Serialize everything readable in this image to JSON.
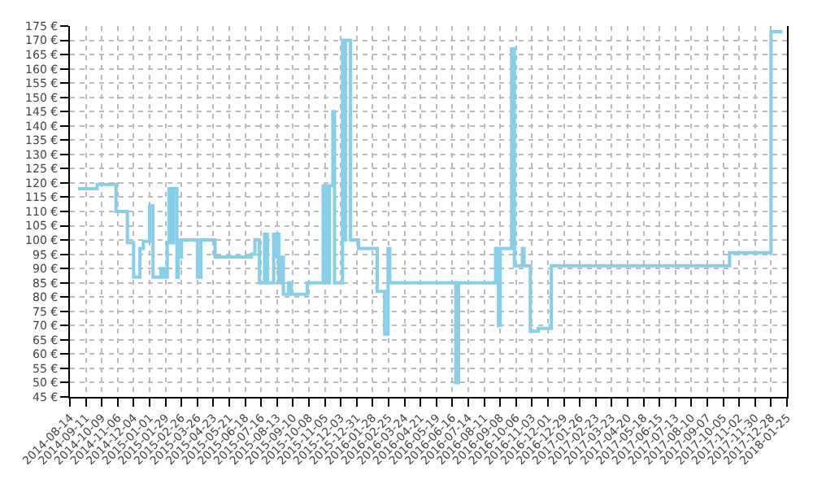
{
  "chart_data": {
    "type": "step",
    "color": "#87ceeb",
    "line_style": "solid",
    "marker": "none",
    "grid": true,
    "legend": false,
    "x": [
      "2014-08-28",
      "2014-10-01",
      "2014-11-03",
      "2014-11-23",
      "2014-12-04",
      "2014-12-15",
      "2014-12-21",
      "2015-01-01",
      "2015-01-07",
      "2015-01-21",
      "2015-01-26",
      "2015-02-01",
      "2015-02-04",
      "2015-02-09",
      "2015-02-12",
      "2015-02-18",
      "2015-02-20",
      "2015-02-23",
      "2015-02-26",
      "2015-03-26",
      "2015-04-01",
      "2015-04-26",
      "2015-06-29",
      "2015-07-05",
      "2015-07-13",
      "2015-07-22",
      "2015-07-27",
      "2015-08-07",
      "2015-08-10",
      "2015-08-13",
      "2015-08-16",
      "2015-08-19",
      "2015-08-24",
      "2015-09-02",
      "2015-09-07",
      "2015-10-05",
      "2015-11-02",
      "2015-11-08",
      "2015-11-13",
      "2015-11-19",
      "2015-11-22",
      "2015-12-06",
      "2015-12-09",
      "2015-12-11",
      "2015-12-20",
      "2016-01-03",
      "2016-02-05",
      "2016-02-18",
      "2016-02-24",
      "2016-02-27",
      "2016-06-22",
      "2016-06-27",
      "2016-08-31",
      "2016-09-05",
      "2016-09-08",
      "2016-09-28",
      "2016-10-03",
      "2016-10-17",
      "2016-10-20",
      "2016-10-31",
      "2016-11-14",
      "2016-12-07",
      "2017-10-16",
      "2017-12-28",
      "2018-01-17"
    ],
    "values": [
      118,
      119.5,
      110,
      99,
      87,
      97,
      99.5,
      112,
      87,
      90,
      87,
      99,
      118,
      99,
      118,
      87,
      100,
      94,
      100,
      87,
      100,
      94,
      95,
      100,
      85,
      102,
      85,
      102,
      94,
      102,
      85,
      94,
      81,
      85,
      81,
      85,
      119,
      85,
      119,
      145,
      85,
      170,
      100,
      170,
      100,
      97,
      82,
      67,
      97,
      85,
      50,
      85,
      97,
      70,
      97,
      167,
      91,
      97,
      91,
      68,
      69,
      91,
      95.5,
      173,
      173
    ],
    "xlim": [
      "2014-08-14",
      "2018-01-25"
    ],
    "xticks": [
      {
        "value": "2014-08-14",
        "label": "2014-08-14"
      },
      {
        "value": "2014-09-11",
        "label": "2014-09-11"
      },
      {
        "value": "2014-10-09",
        "label": "2014-10-09"
      },
      {
        "value": "2014-11-06",
        "label": "2014-11-06"
      },
      {
        "value": "2014-12-04",
        "label": "2014-12-04"
      },
      {
        "value": "2015-01-01",
        "label": "2015-01-01"
      },
      {
        "value": "2015-01-29",
        "label": "2015-01-29"
      },
      {
        "value": "2015-02-26",
        "label": "2015-02-26"
      },
      {
        "value": "2015-03-26",
        "label": "2015-03-26"
      },
      {
        "value": "2015-04-23",
        "label": "2015-04-23"
      },
      {
        "value": "2015-05-21",
        "label": "2015-05-21"
      },
      {
        "value": "2015-06-18",
        "label": "2015-06-18"
      },
      {
        "value": "2015-07-16",
        "label": "2015-07-16"
      },
      {
        "value": "2015-08-13",
        "label": "2015-08-13"
      },
      {
        "value": "2015-09-10",
        "label": "2015-09-10"
      },
      {
        "value": "2015-10-08",
        "label": "2015-10-08"
      },
      {
        "value": "2015-11-05",
        "label": "2015-11-05"
      },
      {
        "value": "2015-12-03",
        "label": "2015-12-03"
      },
      {
        "value": "2015-12-31",
        "label": "2015-12-31"
      },
      {
        "value": "2016-01-28",
        "label": "2016-01-28"
      },
      {
        "value": "2016-02-25",
        "label": "2016-02-25"
      },
      {
        "value": "2016-03-24",
        "label": "2016-03-24"
      },
      {
        "value": "2016-04-21",
        "label": "2016-04-21"
      },
      {
        "value": "2016-05-19",
        "label": "2016-05-19"
      },
      {
        "value": "2016-06-16",
        "label": "2016-06-16"
      },
      {
        "value": "2016-07-14",
        "label": "2016-07-14"
      },
      {
        "value": "2016-08-11",
        "label": "2016-08-11"
      },
      {
        "value": "2016-09-08",
        "label": "2016-09-08"
      },
      {
        "value": "2016-10-06",
        "label": "2016-10-06"
      },
      {
        "value": "2016-11-03",
        "label": "2016-11-03"
      },
      {
        "value": "2016-12-01",
        "label": "2016-12-01"
      },
      {
        "value": "2016-12-29",
        "label": "2016-12-29"
      },
      {
        "value": "2017-01-26",
        "label": "2017-01-26"
      },
      {
        "value": "2017-02-23",
        "label": "2017-02-23"
      },
      {
        "value": "2017-03-23",
        "label": "2017-03-23"
      },
      {
        "value": "2017-04-20",
        "label": "2017-04-20"
      },
      {
        "value": "2017-05-18",
        "label": "2017-05-18"
      },
      {
        "value": "2017-06-15",
        "label": "2017-06-15"
      },
      {
        "value": "2017-07-13",
        "label": "2017-07-13"
      },
      {
        "value": "2017-08-10",
        "label": "2017-08-10"
      },
      {
        "value": "2017-09-07",
        "label": "2017-09-07"
      },
      {
        "value": "2017-10-05",
        "label": "2017-10-05"
      },
      {
        "value": "2017-11-02",
        "label": "2017-11-02"
      },
      {
        "value": "2017-11-30",
        "label": "2017-11-30"
      },
      {
        "value": "2017-12-28",
        "label": "2017-12-28"
      },
      {
        "value": "2018-01-25",
        "label": "2018-01-25"
      }
    ],
    "ylim": [
      45,
      175
    ],
    "yticks": [
      {
        "value": 45,
        "label": "45 €"
      },
      {
        "value": 50,
        "label": "50 €"
      },
      {
        "value": 55,
        "label": "55 €"
      },
      {
        "value": 60,
        "label": "60 €"
      },
      {
        "value": 65,
        "label": "65 €"
      },
      {
        "value": 70,
        "label": "70 €"
      },
      {
        "value": 75,
        "label": "75 €"
      },
      {
        "value": 80,
        "label": "80 €"
      },
      {
        "value": 85,
        "label": "85 €"
      },
      {
        "value": 90,
        "label": "90 €"
      },
      {
        "value": 95,
        "label": "95 €"
      },
      {
        "value": 100,
        "label": "100 €"
      },
      {
        "value": 105,
        "label": "105 €"
      },
      {
        "value": 110,
        "label": "110 €"
      },
      {
        "value": 115,
        "label": "115 €"
      },
      {
        "value": 120,
        "label": "120 €"
      },
      {
        "value": 125,
        "label": "125 €"
      },
      {
        "value": 130,
        "label": "130 €"
      },
      {
        "value": 135,
        "label": "135 €"
      },
      {
        "value": 140,
        "label": "140 €"
      },
      {
        "value": 145,
        "label": "145 €"
      },
      {
        "value": 150,
        "label": "150 €"
      },
      {
        "value": 155,
        "label": "155 €"
      },
      {
        "value": 160,
        "label": "160 €"
      },
      {
        "value": 165,
        "label": "165 €"
      },
      {
        "value": 170,
        "label": "170 €"
      },
      {
        "value": 175,
        "label": "175 €"
      }
    ]
  }
}
